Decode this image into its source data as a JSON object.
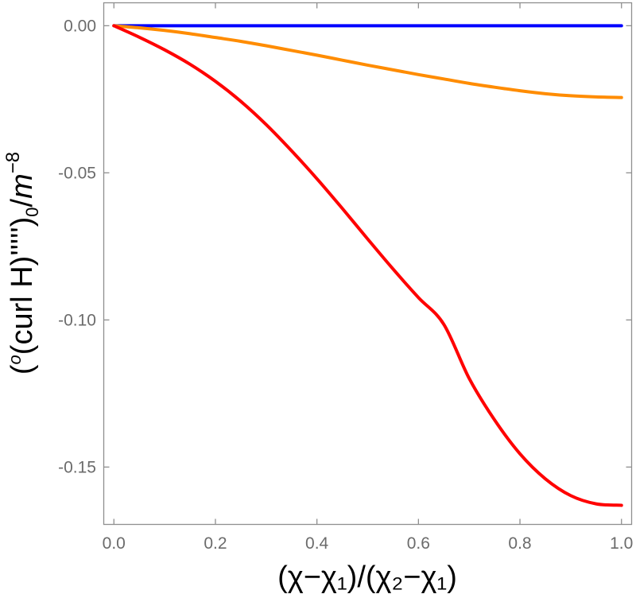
{
  "chart_data": {
    "type": "line",
    "title": "",
    "xlabel": "(χ−χ₁)/(χ₂−χ₁)",
    "ylabel_parts": {
      "open": "(",
      "super_o": "o",
      "core": "(curl H)'''''",
      "close": ")",
      "sub0": "0",
      "slash": "/",
      "m": "m",
      "exp": "−8"
    },
    "xlim": [
      -0.02,
      1.02
    ],
    "ylim": [
      -0.1695,
      0.0078
    ],
    "grid": false,
    "legend": "none",
    "x_ticks": [
      {
        "value": 0.0,
        "label": "0.0"
      },
      {
        "value": 0.2,
        "label": "0.2"
      },
      {
        "value": 0.4,
        "label": "0.4"
      },
      {
        "value": 0.6,
        "label": "0.6"
      },
      {
        "value": 0.8,
        "label": "0.8"
      },
      {
        "value": 1.0,
        "label": "1.0"
      }
    ],
    "y_ticks": [
      {
        "value": 0.0,
        "label": "0.00"
      },
      {
        "value": -0.05,
        "label": "-0.05"
      },
      {
        "value": -0.1,
        "label": "-0.10"
      },
      {
        "value": -0.15,
        "label": "-0.15"
      }
    ],
    "x": [
      0.0,
      0.05,
      0.1,
      0.15,
      0.2,
      0.25,
      0.3,
      0.35,
      0.4,
      0.45,
      0.5,
      0.55,
      0.6,
      0.65,
      0.7,
      0.75,
      0.8,
      0.85,
      0.9,
      0.95,
      1.0
    ],
    "series": [
      {
        "color": "#0000ff",
        "values": [
          0,
          0,
          0,
          0,
          0,
          0,
          0,
          0,
          0,
          0,
          0,
          0,
          0,
          0,
          0,
          0,
          0,
          0,
          0,
          0,
          0
        ]
      },
      {
        "color": "#ff8c00",
        "values": [
          0,
          -0.0007,
          -0.0016,
          -0.0027,
          -0.004,
          -0.0053,
          -0.0068,
          -0.0084,
          -0.01,
          -0.0117,
          -0.0134,
          -0.015,
          -0.0166,
          -0.0181,
          -0.0196,
          -0.0209,
          -0.0221,
          -0.0231,
          -0.0238,
          -0.0242,
          -0.0244
        ]
      },
      {
        "color": "#ff0000",
        "values": [
          0,
          -0.0039,
          -0.0082,
          -0.0131,
          -0.0189,
          -0.0257,
          -0.0336,
          -0.0425,
          -0.052,
          -0.0621,
          -0.0725,
          -0.0827,
          -0.0924,
          -0.1015,
          -0.1199,
          -0.134,
          -0.1455,
          -0.154,
          -0.1597,
          -0.1625,
          -0.163
        ]
      }
    ]
  }
}
